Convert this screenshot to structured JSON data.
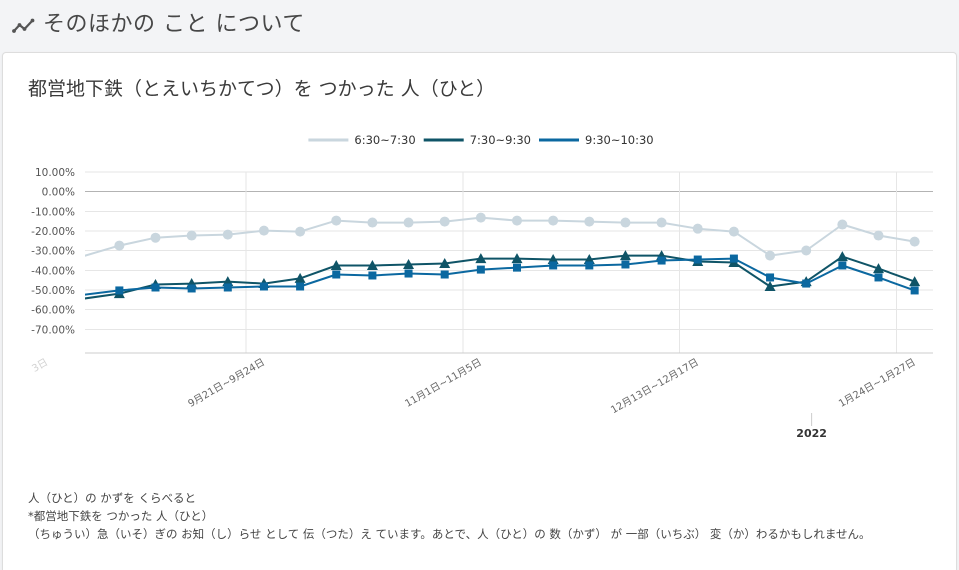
{
  "header": {
    "title": "そのほかの こと について",
    "icon": "chart-line-icon"
  },
  "chart_data": {
    "type": "line",
    "title": "都営地下鉄（とえいちかてつ）を つかった 人（ひと）",
    "series": [
      {
        "name": "6:30~7:30",
        "color": "#c9d6de",
        "marker": "circle",
        "values": [
          -32.8,
          -27.4,
          -23.4,
          -22.3,
          -21.8,
          -19.8,
          -20.3,
          -14.7,
          -15.7,
          -15.7,
          -15.2,
          -13.2,
          -14.7,
          -14.7,
          -15.2,
          -15.7,
          -15.7,
          -18.8,
          -20.3,
          -32.5,
          -29.9,
          -16.7,
          -22.3,
          -25.4
        ]
      },
      {
        "name": "7:30~9:30",
        "color": "#0f5467",
        "marker": "triangle",
        "values": [
          -54.4,
          -51.8,
          -47.2,
          -46.7,
          -45.7,
          -46.7,
          -44.1,
          -37.5,
          -37.5,
          -37.0,
          -36.5,
          -34.0,
          -34.0,
          -34.5,
          -34.5,
          -32.5,
          -32.5,
          -35.5,
          -36.0,
          -48.2,
          -45.7,
          -33.0,
          -39.1,
          -45.7
        ]
      },
      {
        "name": "9:30~10:30",
        "color": "#0b68a0",
        "marker": "square",
        "values": [
          -52.4,
          -50.2,
          -48.7,
          -49.2,
          -48.7,
          -48.2,
          -48.2,
          -42.1,
          -42.6,
          -41.6,
          -42.1,
          -39.6,
          -38.6,
          -37.5,
          -37.5,
          -37.0,
          -35.0,
          -34.5,
          -34.0,
          -43.6,
          -46.7,
          -37.5,
          -43.6,
          -50.2
        ]
      }
    ],
    "x_tick_labels": [
      {
        "index": -1,
        "label": "3日"
      },
      {
        "index": 5,
        "label": "9月21日~9月24日"
      },
      {
        "index": 11,
        "label": "11月1日~11月5日"
      },
      {
        "index": 17,
        "label": "12月13日~12月17日"
      },
      {
        "index": 23,
        "label": "1月24日~1月27日"
      }
    ],
    "x_group_label": "2022",
    "y_tick_labels": [
      "10.00%",
      "0.00%",
      "-10.00%",
      "-20.00%",
      "-30.00%",
      "-40.00%",
      "-50.00%",
      "-60.00%",
      "-70.00%"
    ],
    "ylim": [
      -82,
      10
    ],
    "grid": true,
    "legend_position": "top-center"
  },
  "notes": [
    "人（ひと）の かずを くらべると",
    "*都営地下鉄を つかった 人（ひと）",
    "（ちゅうい）急（いそ）ぎの お知（し）らせ として 伝（つた）え ています。あとで、人（ひと）の 数（かず） が 一部（いちぶ） 変（か）わるかもしれません。"
  ]
}
